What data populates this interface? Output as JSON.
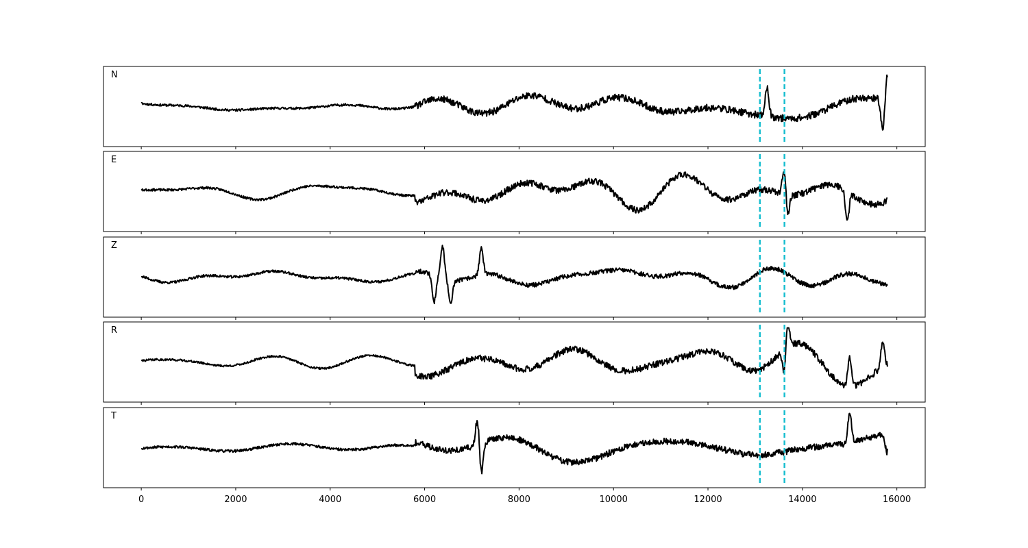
{
  "chart_data": {
    "type": "line",
    "layout": "stacked",
    "xlim": [
      -800,
      16600
    ],
    "x_ticks": [
      0,
      2000,
      4000,
      6000,
      8000,
      10000,
      12000,
      14000,
      16000
    ],
    "x_tick_labels": [
      "0",
      "2000",
      "4000",
      "6000",
      "8000",
      "10000",
      "12000",
      "14000",
      "16000"
    ],
    "n_samples": 15800,
    "series_color": "#000000",
    "marker_color": "#17becf",
    "markers": [
      13100,
      13620
    ],
    "panels": [
      {
        "label": "N",
        "signal": {
          "seed": 11,
          "pre_amp": 0.18,
          "post_amp": 0.55,
          "onset": 5800,
          "spikes": [
            [
              15800,
              0.7
            ],
            [
              15700,
              -0.85
            ],
            [
              13250,
              0.8
            ]
          ]
        }
      },
      {
        "label": "E",
        "signal": {
          "seed": 23,
          "pre_amp": 0.18,
          "post_amp": 0.5,
          "onset": 5800,
          "spikes": [
            [
              13620,
              0.85
            ],
            [
              14950,
              -0.8
            ],
            [
              13680,
              -0.7
            ]
          ]
        }
      },
      {
        "label": "Z",
        "signal": {
          "seed": 37,
          "pre_amp": 0.2,
          "post_amp": 0.35,
          "onset": 5800,
          "spikes": [
            [
              6380,
              0.9
            ],
            [
              6200,
              -0.75
            ],
            [
              6550,
              -0.7
            ],
            [
              7200,
              0.75
            ]
          ]
        }
      },
      {
        "label": "R",
        "signal": {
          "seed": 41,
          "pre_amp": 0.16,
          "post_amp": 0.5,
          "onset": 5800,
          "spikes": [
            [
              13680,
              0.9
            ],
            [
              15000,
              0.8
            ],
            [
              15700,
              0.7
            ],
            [
              13620,
              -0.85
            ]
          ]
        }
      },
      {
        "label": "T",
        "signal": {
          "seed": 53,
          "pre_amp": 0.2,
          "post_amp": 0.5,
          "onset": 5800,
          "spikes": [
            [
              15000,
              0.85
            ],
            [
              7200,
              -0.85
            ],
            [
              7120,
              0.75
            ],
            [
              15790,
              -0.5
            ]
          ]
        }
      }
    ]
  }
}
